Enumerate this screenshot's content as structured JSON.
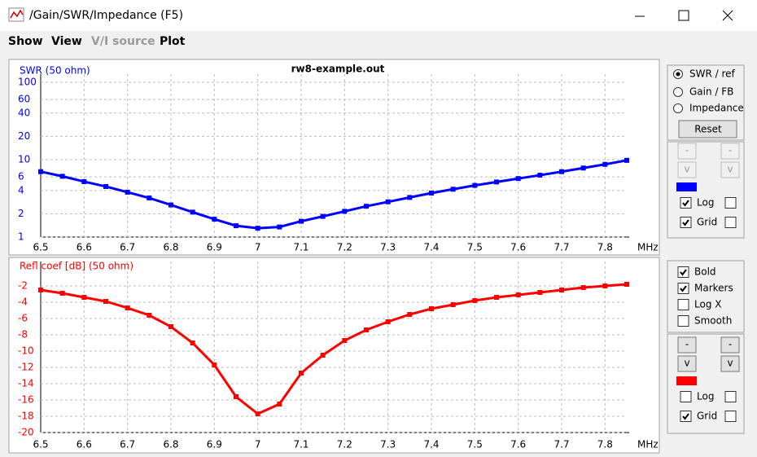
{
  "window": {
    "title": "/Gain/SWR/Impedance (F5)",
    "menu": [
      "Show",
      "View",
      "V/I source",
      "Plot"
    ]
  },
  "chart_data": [
    {
      "type": "line",
      "title": "rw8-example.out",
      "y_label": "SWR (50 ohm)",
      "x_unit": "MHz",
      "color": "#0000ff",
      "log_y": true,
      "grid": true,
      "markers": true,
      "x": [
        6.5,
        6.55,
        6.6,
        6.65,
        6.7,
        6.75,
        6.8,
        6.85,
        6.9,
        6.95,
        7.0,
        7.05,
        7.1,
        7.15,
        7.2,
        7.25,
        7.3,
        7.35,
        7.4,
        7.45,
        7.5,
        7.55,
        7.6,
        7.65,
        7.7,
        7.75,
        7.8,
        7.85
      ],
      "values": [
        7.0,
        6.1,
        5.2,
        4.5,
        3.8,
        3.2,
        2.6,
        2.1,
        1.7,
        1.4,
        1.3,
        1.35,
        1.6,
        1.85,
        2.15,
        2.5,
        2.85,
        3.25,
        3.7,
        4.15,
        4.65,
        5.15,
        5.7,
        6.3,
        7.0,
        7.8,
        8.7,
        9.8
      ],
      "xlim": [
        6.5,
        7.85
      ],
      "xticks": [
        6.5,
        6.6,
        6.7,
        6.8,
        6.9,
        7,
        7.1,
        7.2,
        7.3,
        7.4,
        7.5,
        7.6,
        7.7,
        7.8
      ],
      "ylim": [
        1,
        100
      ],
      "yticks": [
        1,
        2,
        4,
        6,
        10,
        20,
        40,
        60,
        100
      ]
    },
    {
      "type": "line",
      "y_label": "Refl coef [dB] (50 ohm)",
      "x_unit": "MHz",
      "color": "#ff0000",
      "log_y": false,
      "grid": true,
      "markers": true,
      "x": [
        6.5,
        6.55,
        6.6,
        6.65,
        6.7,
        6.75,
        6.8,
        6.85,
        6.9,
        6.95,
        7.0,
        7.05,
        7.1,
        7.15,
        7.2,
        7.25,
        7.3,
        7.35,
        7.4,
        7.45,
        7.5,
        7.55,
        7.6,
        7.65,
        7.7,
        7.75,
        7.8,
        7.85
      ],
      "values": [
        -2.5,
        -2.9,
        -3.4,
        -3.9,
        -4.7,
        -5.6,
        -7.0,
        -9.0,
        -11.7,
        -15.6,
        -17.7,
        -16.5,
        -12.7,
        -10.5,
        -8.7,
        -7.4,
        -6.4,
        -5.5,
        -4.8,
        -4.3,
        -3.8,
        -3.4,
        -3.1,
        -2.8,
        -2.5,
        -2.2,
        -2.0,
        -1.8
      ],
      "xlim": [
        6.5,
        7.85
      ],
      "xticks": [
        6.5,
        6.6,
        6.7,
        6.8,
        6.9,
        7,
        7.1,
        7.2,
        7.3,
        7.4,
        7.5,
        7.6,
        7.7,
        7.8
      ],
      "ylim": [
        -20,
        0
      ],
      "yticks": [
        -20,
        -18,
        -16,
        -14,
        -12,
        -10,
        -8,
        -6,
        -4,
        -2
      ]
    }
  ],
  "mode_panel": {
    "radios": [
      {
        "label": "SWR / ref",
        "selected": true
      },
      {
        "label": "Gain / FB",
        "selected": false
      },
      {
        "label": "Impedance",
        "selected": false
      }
    ],
    "reset": "Reset"
  },
  "top_controls": {
    "buttons": [
      "-",
      "-",
      "v",
      "v"
    ],
    "enabled": false,
    "checks": [
      {
        "label": "Log",
        "checked": true
      },
      {
        "label": "Grid",
        "checked": true
      }
    ]
  },
  "options": [
    {
      "label": "Bold",
      "checked": true
    },
    {
      "label": "Markers",
      "checked": true
    },
    {
      "label": "Log X",
      "checked": false
    },
    {
      "label": "Smooth",
      "checked": false
    }
  ],
  "bottom_controls": {
    "buttons": [
      "-",
      "-",
      "v",
      "v"
    ],
    "enabled": true,
    "checks": [
      {
        "label": "Log",
        "checked": false
      },
      {
        "label": "Grid",
        "checked": true
      }
    ]
  }
}
